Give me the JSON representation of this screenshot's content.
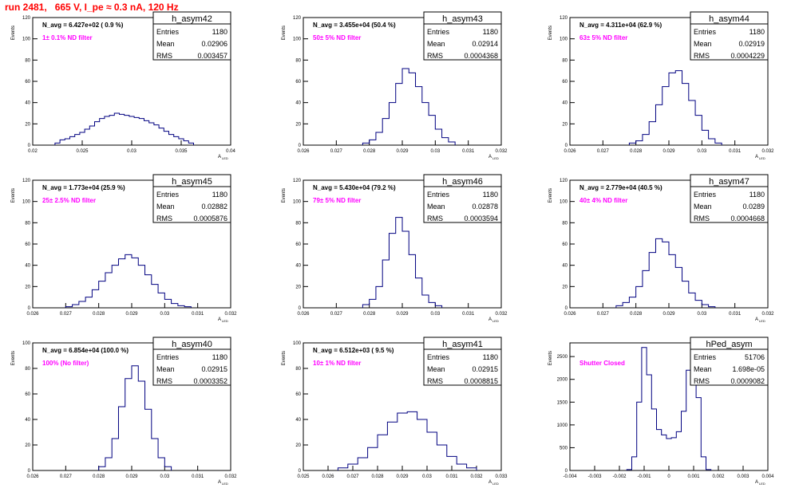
{
  "page_title": "run 2481,   665 V, I_pe ≈ 0.3 nA, 120 Hz",
  "colors": {
    "title": "#ff0000",
    "histogram": "#000080",
    "annotation": "#ff00ff",
    "axis": "#000000"
  },
  "ylabel": "Events",
  "xlabel": "A",
  "xlabel_subscript": "LED",
  "stats_labels": {
    "entries": "Entries",
    "mean": "Mean",
    "rms": "RMS"
  },
  "chart_data": [
    {
      "type": "bar",
      "name": "h_asym42",
      "nlabel": "N_avg = 6.427e+02 ( 0.9 %)",
      "note": "1± 0.1% ND filter",
      "entries": "1180",
      "mean": "0.02906",
      "rms": "0.003457",
      "xlim": [
        0.02,
        0.04
      ],
      "ylim": [
        0,
        120
      ],
      "xticks": [
        0.02,
        0.025,
        0.03,
        0.035,
        0.04
      ],
      "xticklabels": [
        "0.02",
        "0.025",
        "0.03",
        "0.035",
        "0.04"
      ],
      "yticks": [
        0,
        20,
        40,
        60,
        80,
        100,
        120
      ],
      "yticklabels": [
        "0",
        "20",
        "40",
        "60",
        "80",
        "100",
        "120"
      ],
      "x": [
        0.0225,
        0.023,
        0.0235,
        0.024,
        0.0245,
        0.025,
        0.0255,
        0.026,
        0.0265,
        0.027,
        0.0275,
        0.028,
        0.0285,
        0.029,
        0.0295,
        0.03,
        0.0305,
        0.031,
        0.0315,
        0.032,
        0.0325,
        0.033,
        0.0335,
        0.034,
        0.0345,
        0.035,
        0.0355,
        0.036
      ],
      "values": [
        2,
        5,
        6,
        8,
        10,
        12,
        15,
        18,
        22,
        25,
        27,
        28,
        30,
        29,
        28,
        27,
        26,
        25,
        23,
        21,
        19,
        16,
        13,
        10,
        8,
        6,
        4,
        2
      ]
    },
    {
      "type": "bar",
      "name": "h_asym43",
      "nlabel": "N_avg = 3.455e+04 (50.4 %)",
      "note": "50± 5% ND filter",
      "entries": "1180",
      "mean": "0.02914",
      "rms": "0.0004368",
      "xlim": [
        0.026,
        0.032
      ],
      "ylim": [
        0,
        120
      ],
      "xticks": [
        0.026,
        0.027,
        0.028,
        0.029,
        0.03,
        0.031,
        0.032
      ],
      "xticklabels": [
        "0.026",
        "0.027",
        "0.028",
        "0.029",
        "0.03",
        "0.031",
        "0.032"
      ],
      "yticks": [
        0,
        20,
        40,
        60,
        80,
        100,
        120
      ],
      "yticklabels": [
        "0",
        "20",
        "40",
        "60",
        "80",
        "100",
        "120"
      ],
      "x": [
        0.0279,
        0.0281,
        0.0283,
        0.0285,
        0.0287,
        0.0289,
        0.0291,
        0.0293,
        0.0295,
        0.0297,
        0.0299,
        0.0301,
        0.0303,
        0.0305
      ],
      "values": [
        2,
        5,
        12,
        25,
        40,
        58,
        72,
        68,
        55,
        40,
        28,
        15,
        7,
        3
      ]
    },
    {
      "type": "bar",
      "name": "h_asym44",
      "nlabel": "N_avg = 4.311e+04 (62.9 %)",
      "note": "63± 5% ND filter",
      "entries": "1180",
      "mean": "0.02919",
      "rms": "0.0004229",
      "xlim": [
        0.026,
        0.032
      ],
      "ylim": [
        0,
        120
      ],
      "xticks": [
        0.026,
        0.027,
        0.028,
        0.029,
        0.03,
        0.031,
        0.032
      ],
      "xticklabels": [
        "0.026",
        "0.027",
        "0.028",
        "0.029",
        "0.03",
        "0.031",
        "0.032"
      ],
      "yticks": [
        0,
        20,
        40,
        60,
        80,
        100,
        120
      ],
      "yticklabels": [
        "0",
        "20",
        "40",
        "60",
        "80",
        "100",
        "120"
      ],
      "x": [
        0.0279,
        0.0281,
        0.0283,
        0.0285,
        0.0287,
        0.0289,
        0.0291,
        0.0293,
        0.0295,
        0.0297,
        0.0299,
        0.0301,
        0.0303,
        0.0305
      ],
      "values": [
        2,
        4,
        10,
        22,
        38,
        55,
        68,
        70,
        58,
        42,
        28,
        14,
        6,
        2
      ]
    },
    {
      "type": "bar",
      "name": "h_asym45",
      "nlabel": "N_avg = 1.773e+04 (25.9 %)",
      "note": "25± 2.5% ND filter",
      "entries": "1180",
      "mean": "0.02882",
      "rms": "0.0005876",
      "xlim": [
        0.026,
        0.032
      ],
      "ylim": [
        0,
        120
      ],
      "xticks": [
        0.026,
        0.027,
        0.028,
        0.029,
        0.03,
        0.031,
        0.032
      ],
      "xticklabels": [
        "0.026",
        "0.027",
        "0.028",
        "0.029",
        "0.03",
        "0.031",
        "0.032"
      ],
      "yticks": [
        0,
        20,
        40,
        60,
        80,
        100,
        120
      ],
      "yticklabels": [
        "0",
        "20",
        "40",
        "60",
        "80",
        "100",
        "120"
      ],
      "x": [
        0.0271,
        0.0273,
        0.0275,
        0.0277,
        0.0279,
        0.0281,
        0.0283,
        0.0285,
        0.0287,
        0.0289,
        0.0291,
        0.0293,
        0.0295,
        0.0297,
        0.0299,
        0.0301,
        0.0303,
        0.0305,
        0.0307
      ],
      "values": [
        1,
        3,
        6,
        10,
        17,
        25,
        33,
        40,
        46,
        50,
        47,
        40,
        31,
        22,
        14,
        8,
        4,
        2,
        1
      ]
    },
    {
      "type": "bar",
      "name": "h_asym46",
      "nlabel": "N_avg = 5.430e+04 (79.2 %)",
      "note": "79± 5% ND filter",
      "entries": "1180",
      "mean": "0.02878",
      "rms": "0.0003594",
      "xlim": [
        0.026,
        0.032
      ],
      "ylim": [
        0,
        120
      ],
      "xticks": [
        0.026,
        0.027,
        0.028,
        0.029,
        0.03,
        0.031,
        0.032
      ],
      "xticklabels": [
        "0.026",
        "0.027",
        "0.028",
        "0.029",
        "0.03",
        "0.031",
        "0.032"
      ],
      "yticks": [
        0,
        20,
        40,
        60,
        80,
        100,
        120
      ],
      "yticklabels": [
        "0",
        "20",
        "40",
        "60",
        "80",
        "100",
        "120"
      ],
      "x": [
        0.0279,
        0.0281,
        0.0283,
        0.0285,
        0.0287,
        0.0289,
        0.0291,
        0.0293,
        0.0295,
        0.0297,
        0.0299,
        0.0301
      ],
      "values": [
        3,
        8,
        20,
        45,
        70,
        85,
        72,
        50,
        28,
        12,
        5,
        2
      ]
    },
    {
      "type": "bar",
      "name": "h_asym47",
      "nlabel": "N_avg = 2.779e+04 (40.5 %)",
      "note": "40± 4% ND filter",
      "entries": "1180",
      "mean": "0.0289",
      "rms": "0.0004668",
      "xlim": [
        0.026,
        0.032
      ],
      "ylim": [
        0,
        120
      ],
      "xticks": [
        0.026,
        0.027,
        0.028,
        0.029,
        0.03,
        0.031,
        0.032
      ],
      "xticklabels": [
        "0.026",
        "0.027",
        "0.028",
        "0.029",
        "0.03",
        "0.031",
        "0.032"
      ],
      "yticks": [
        0,
        20,
        40,
        60,
        80,
        100,
        120
      ],
      "yticklabels": [
        "0",
        "20",
        "40",
        "60",
        "80",
        "100",
        "120"
      ],
      "x": [
        0.0275,
        0.0277,
        0.0279,
        0.0281,
        0.0283,
        0.0285,
        0.0287,
        0.0289,
        0.0291,
        0.0293,
        0.0295,
        0.0297,
        0.0299,
        0.0301,
        0.0303
      ],
      "values": [
        2,
        5,
        10,
        20,
        35,
        52,
        65,
        62,
        50,
        38,
        25,
        14,
        7,
        3,
        1
      ]
    },
    {
      "type": "bar",
      "name": "h_asym40",
      "nlabel": "N_avg = 6.854e+04 (100.0 %)",
      "note": "100% (No filter)",
      "entries": "1180",
      "mean": "0.02915",
      "rms": "0.0003352",
      "xlim": [
        0.026,
        0.032
      ],
      "ylim": [
        0,
        100
      ],
      "xticks": [
        0.026,
        0.027,
        0.028,
        0.029,
        0.03,
        0.031,
        0.032
      ],
      "xticklabels": [
        "0.026",
        "0.027",
        "0.028",
        "0.029",
        "0.03",
        "0.031",
        "0.032"
      ],
      "yticks": [
        0,
        20,
        40,
        60,
        80,
        100
      ],
      "yticklabels": [
        "0",
        "20",
        "40",
        "60",
        "80",
        "100"
      ],
      "x": [
        0.0281,
        0.0283,
        0.0285,
        0.0287,
        0.0289,
        0.0291,
        0.0293,
        0.0295,
        0.0297,
        0.0299,
        0.0301
      ],
      "values": [
        3,
        10,
        25,
        50,
        72,
        82,
        70,
        48,
        25,
        10,
        3
      ]
    },
    {
      "type": "bar",
      "name": "h_asym41",
      "nlabel": "N_avg = 6.512e+03 ( 9.5 %)",
      "note": "10± 1% ND filter",
      "entries": "1180",
      "mean": "0.02915",
      "rms": "0.0008815",
      "xlim": [
        0.025,
        0.033
      ],
      "ylim": [
        0,
        100
      ],
      "xticks": [
        0.025,
        0.026,
        0.027,
        0.028,
        0.029,
        0.03,
        0.031,
        0.032,
        0.033
      ],
      "xticklabels": [
        "0.025",
        "0.026",
        "0.027",
        "0.028",
        "0.029",
        "0.03",
        "0.031",
        "0.032",
        "0.033"
      ],
      "yticks": [
        0,
        20,
        40,
        60,
        80,
        100
      ],
      "yticklabels": [
        "0",
        "20",
        "40",
        "60",
        "80",
        "100"
      ],
      "x": [
        0.0266,
        0.027,
        0.0274,
        0.0278,
        0.0282,
        0.0286,
        0.029,
        0.0294,
        0.0298,
        0.0302,
        0.0306,
        0.031,
        0.0314,
        0.0318
      ],
      "values": [
        2,
        5,
        10,
        18,
        28,
        38,
        45,
        46,
        40,
        30,
        20,
        11,
        5,
        2
      ]
    },
    {
      "type": "bar",
      "name": "hPed_asym",
      "nlabel": "",
      "note": "Shutter Closed",
      "entries": "51706",
      "mean": "1.698e-05",
      "rms": "0.0009082",
      "xlim": [
        -0.004,
        0.004
      ],
      "ylim": [
        0,
        2800
      ],
      "xticks": [
        -0.004,
        -0.003,
        -0.002,
        -0.001,
        0,
        0.001,
        0.002,
        0.003,
        0.004
      ],
      "xticklabels": [
        "-0.004",
        "-0.003",
        "-0.002",
        "-0.001",
        "0",
        "0.001",
        "0.002",
        "0.003",
        "0.004"
      ],
      "yticks": [
        0,
        500,
        1000,
        1500,
        2000,
        2500
      ],
      "yticklabels": [
        "0",
        "500",
        "1000",
        "1500",
        "2000",
        "2500"
      ],
      "x": [
        -0.0016,
        -0.0014,
        -0.0012,
        -0.001,
        -0.0008,
        -0.0006,
        -0.0004,
        -0.0002,
        0,
        0.0002,
        0.0004,
        0.0006,
        0.0008,
        0.001,
        0.0012,
        0.0014,
        0.0016
      ],
      "values": [
        20,
        300,
        1500,
        2700,
        2100,
        1350,
        900,
        780,
        700,
        720,
        850,
        1300,
        2200,
        2750,
        1600,
        300,
        20
      ]
    }
  ]
}
